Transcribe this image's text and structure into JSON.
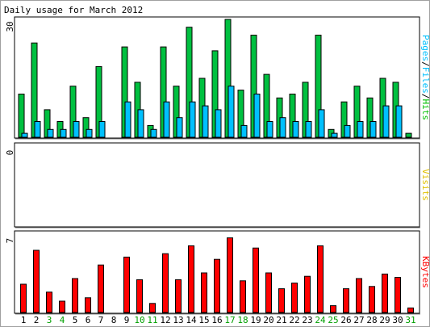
{
  "chart_data": {
    "type": "bar",
    "title": "Daily usage for March 2012",
    "categories": [
      "1",
      "2",
      "3",
      "4",
      "5",
      "6",
      "7",
      "8",
      "9",
      "10",
      "11",
      "12",
      "13",
      "14",
      "15",
      "16",
      "17",
      "18",
      "19",
      "20",
      "21",
      "22",
      "23",
      "24",
      "25",
      "26",
      "27",
      "28",
      "29",
      "30",
      "31"
    ],
    "weekend_days": [
      "3",
      "4",
      "10",
      "11",
      "17",
      "18",
      "24",
      "25",
      "31"
    ],
    "panels": [
      {
        "name": "hits-files-pages",
        "ylabel_parts": [
          "Pages",
          "/",
          "Files",
          "/",
          "Hits"
        ],
        "ylabel_colors": [
          "#00c0ff",
          "#000000",
          "#00c0ff",
          "#000000",
          "#00c000"
        ],
        "ymax_label": "30",
        "ymax": 30,
        "series": [
          {
            "name": "Hits",
            "color": "#00c040",
            "values": [
              11,
              24,
              7,
              4,
              13,
              5,
              18,
              0,
              23,
              14,
              3,
              23,
              13,
              28,
              15,
              22,
              30,
              12,
              26,
              16,
              10,
              11,
              14,
              26,
              2,
              9,
              13,
              10,
              15,
              14,
              1
            ]
          },
          {
            "name": "Files",
            "color": "#00c0ff",
            "values": [
              1,
              4,
              2,
              2,
              4,
              2,
              4,
              0,
              9,
              7,
              2,
              9,
              5,
              9,
              8,
              7,
              13,
              3,
              11,
              4,
              5,
              4,
              4,
              7,
              1,
              3,
              4,
              4,
              8,
              8,
              0
            ]
          }
        ]
      },
      {
        "name": "visits",
        "ylabel_parts": [
          "Visits"
        ],
        "ylabel_colors": [
          "#e0c000"
        ],
        "ymax_label": "0",
        "ymax": 1,
        "series": []
      },
      {
        "name": "kbytes",
        "ylabel_parts": [
          "KBytes"
        ],
        "ylabel_colors": [
          "#ff0000"
        ],
        "ymax_label": "7",
        "ymax": 7,
        "series": [
          {
            "name": "KBytes",
            "color": "#ff0000",
            "values": [
              2.5,
              5.5,
              1.8,
              1.0,
              3.0,
              1.3,
              4.2,
              0,
              4.9,
              2.9,
              0.8,
              5.2,
              2.9,
              5.9,
              3.5,
              4.7,
              6.6,
              2.8,
              5.7,
              3.5,
              2.1,
              2.6,
              3.2,
              5.9,
              0.6,
              2.1,
              3.0,
              2.3,
              3.4,
              3.1,
              0.4
            ]
          }
        ]
      }
    ],
    "grid": false,
    "legend": "right side vertical labels"
  }
}
